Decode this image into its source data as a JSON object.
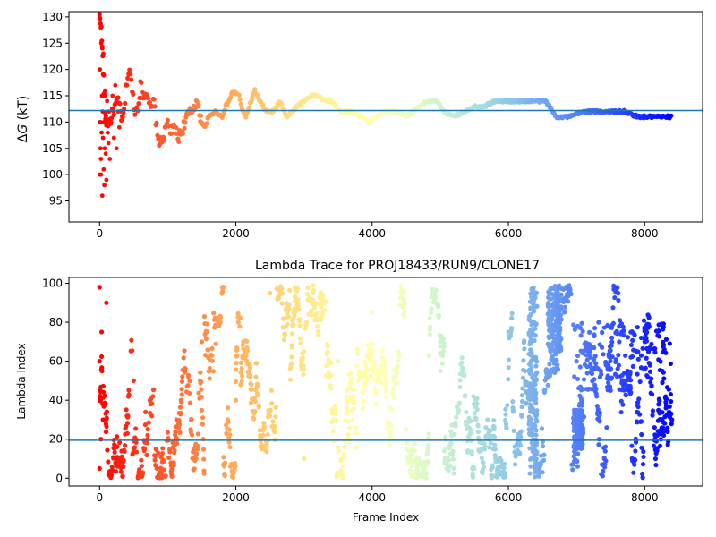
{
  "chart_data": [
    {
      "type": "scatter",
      "title": "",
      "xlabel": "",
      "ylabel": "ΔG (kT)",
      "ylabel_parts": [
        "Δ",
        "G",
        " (kT)"
      ],
      "xlim": [
        -450,
        8850
      ],
      "ylim": [
        91,
        131
      ],
      "xticks": [
        0,
        2000,
        4000,
        6000,
        8000
      ],
      "xtick_labels": [
        "0",
        "2000",
        "4000",
        "6000",
        "8000"
      ],
      "yticks": [
        95,
        100,
        105,
        110,
        115,
        120,
        125,
        130
      ],
      "ytick_labels": [
        "95",
        "100",
        "105",
        "110",
        "115",
        "120",
        "125",
        "130"
      ],
      "hline": 112.2,
      "hline_color": "#1f77b4",
      "colormap": "rainbow",
      "color_scale": "frame index (0 → 8400)",
      "grid": false,
      "trace": [
        [
          0,
          130
        ],
        [
          20,
          129
        ],
        [
          40,
          124
        ],
        [
          60,
          118
        ],
        [
          80,
          112
        ],
        [
          100,
          110
        ],
        [
          150,
          110
        ],
        [
          200,
          112
        ],
        [
          260,
          114
        ],
        [
          300,
          113
        ],
        [
          330,
          110
        ],
        [
          360,
          112
        ],
        [
          400,
          118
        ],
        [
          440,
          120
        ],
        [
          480,
          116
        ],
        [
          520,
          112
        ],
        [
          560,
          113
        ],
        [
          600,
          117
        ],
        [
          650,
          115
        ],
        [
          700,
          116
        ],
        [
          750,
          112
        ],
        [
          800,
          114
        ],
        [
          850,
          107
        ],
        [
          900,
          106
        ],
        [
          960,
          108
        ],
        [
          1000,
          110
        ],
        [
          1050,
          108
        ],
        [
          1100,
          109
        ],
        [
          1150,
          107
        ],
        [
          1200,
          108
        ],
        [
          1280,
          111
        ],
        [
          1350,
          112
        ],
        [
          1420,
          114
        ],
        [
          1500,
          110
        ],
        [
          1550,
          109
        ],
        [
          1600,
          111
        ],
        [
          1700,
          112
        ],
        [
          1800,
          111
        ],
        [
          1850,
          113
        ],
        [
          1900,
          114
        ],
        [
          1960,
          116
        ],
        [
          2050,
          115
        ],
        [
          2100,
          112
        ],
        [
          2150,
          111
        ],
        [
          2200,
          113
        ],
        [
          2280,
          116
        ],
        [
          2350,
          114
        ],
        [
          2450,
          112
        ],
        [
          2550,
          112
        ],
        [
          2650,
          114
        ],
        [
          2750,
          111
        ],
        [
          2900,
          113
        ],
        [
          3000,
          114
        ],
        [
          3100,
          115
        ],
        [
          3200,
          115
        ],
        [
          3300,
          114
        ],
        [
          3400,
          114
        ],
        [
          3550,
          112
        ],
        [
          3700,
          112
        ],
        [
          3850,
          111
        ],
        [
          3950,
          110
        ],
        [
          4050,
          111
        ],
        [
          4200,
          112
        ],
        [
          4350,
          112
        ],
        [
          4500,
          111
        ],
        [
          4600,
          112
        ],
        [
          4700,
          113
        ],
        [
          4800,
          114
        ],
        [
          4950,
          114
        ],
        [
          5050,
          112
        ],
        [
          5200,
          111
        ],
        [
          5350,
          112
        ],
        [
          5500,
          113
        ],
        [
          5650,
          113
        ],
        [
          5800,
          114
        ],
        [
          5950,
          114
        ],
        [
          6100,
          114
        ],
        [
          6250,
          114
        ],
        [
          6400,
          114
        ],
        [
          6550,
          114
        ],
        [
          6700,
          111
        ],
        [
          6900,
          111
        ],
        [
          7100,
          112
        ],
        [
          7300,
          112
        ],
        [
          7500,
          112
        ],
        [
          7700,
          112
        ],
        [
          7900,
          111
        ],
        [
          8100,
          111
        ],
        [
          8250,
          111
        ],
        [
          8400,
          111
        ]
      ],
      "early_scatter": [
        [
          0,
          100
        ],
        [
          0,
          130
        ],
        [
          5,
          120
        ],
        [
          10,
          110
        ],
        [
          15,
          105
        ],
        [
          20,
          103
        ],
        [
          20,
          100
        ],
        [
          25,
          125
        ],
        [
          30,
          108
        ],
        [
          35,
          115
        ],
        [
          40,
          96
        ],
        [
          40,
          124
        ],
        [
          45,
          112
        ],
        [
          50,
          107
        ],
        [
          55,
          123
        ],
        [
          60,
          101
        ],
        [
          60,
          119
        ],
        [
          65,
          110
        ],
        [
          70,
          98
        ],
        [
          75,
          105
        ],
        [
          80,
          116
        ],
        [
          90,
          104
        ],
        [
          100,
          99
        ],
        [
          110,
          114
        ],
        [
          120,
          108
        ],
        [
          130,
          106
        ],
        [
          140,
          112
        ],
        [
          150,
          103
        ],
        [
          170,
          110
        ],
        [
          190,
          115
        ],
        [
          210,
          107
        ],
        [
          230,
          117
        ],
        [
          250,
          105
        ],
        [
          270,
          112
        ],
        [
          290,
          109
        ]
      ]
    },
    {
      "type": "scatter",
      "title": "Lambda Trace for PROJ18433/RUN9/CLONE17",
      "xlabel": "Frame Index",
      "ylabel": "Lambda Index",
      "xlim": [
        -450,
        8850
      ],
      "ylim": [
        -4,
        103
      ],
      "xticks": [
        0,
        2000,
        4000,
        6000,
        8000
      ],
      "xtick_labels": [
        "0",
        "2000",
        "4000",
        "6000",
        "8000"
      ],
      "yticks": [
        0,
        20,
        40,
        60,
        80,
        100
      ],
      "ytick_labels": [
        "0",
        "20",
        "40",
        "60",
        "80",
        "100"
      ],
      "hline": 19.5,
      "hline_color": "#1f77b4",
      "colormap": "rainbow",
      "color_scale": "frame index (0 → 8400)",
      "grid": false,
      "y_range": [
        0,
        99
      ],
      "x_range": [
        0,
        8400
      ],
      "sample_points": [
        [
          0,
          5
        ],
        [
          0,
          60
        ],
        [
          0,
          98
        ],
        [
          10,
          45
        ],
        [
          20,
          20
        ],
        [
          30,
          75
        ],
        [
          50,
          30
        ],
        [
          100,
          90
        ],
        [
          500,
          50
        ],
        [
          1000,
          20
        ],
        [
          1500,
          70
        ],
        [
          2000,
          40
        ],
        [
          2500,
          95
        ],
        [
          3000,
          10
        ],
        [
          3500,
          60
        ],
        [
          4000,
          85
        ],
        [
          4500,
          25
        ],
        [
          5000,
          55
        ],
        [
          5500,
          5
        ],
        [
          6000,
          75
        ],
        [
          6500,
          3
        ],
        [
          6700,
          95
        ],
        [
          7000,
          60
        ],
        [
          7500,
          45
        ],
        [
          8000,
          70
        ],
        [
          8400,
          30
        ]
      ],
      "bands": [
        {
          "x": [
            6300,
            6420
          ],
          "y": [
            2,
            98
          ]
        },
        {
          "x": [
            6580,
            6780
          ],
          "y": [
            65,
            99
          ]
        },
        {
          "x": [
            6950,
            8400
          ],
          "y": [
            45,
            80
          ]
        },
        {
          "x": [
            6950,
            7100
          ],
          "y": [
            15,
            35
          ]
        }
      ]
    }
  ]
}
